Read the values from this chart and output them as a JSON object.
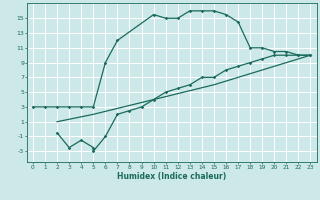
{
  "xlabel": "Humidex (Indice chaleur)",
  "ylabel": "",
  "bg_color": "#cce8e8",
  "grid_color": "#ffffff",
  "line_color": "#1a6b5a",
  "xlim": [
    -0.5,
    23.5
  ],
  "ylim": [
    -4.5,
    17
  ],
  "xticks": [
    0,
    1,
    2,
    3,
    4,
    5,
    6,
    7,
    8,
    9,
    10,
    11,
    12,
    13,
    14,
    15,
    16,
    17,
    18,
    19,
    20,
    21,
    22,
    23
  ],
  "yticks": [
    -3,
    -1,
    1,
    3,
    5,
    7,
    9,
    11,
    13,
    15
  ],
  "line1_x": [
    0,
    1,
    2,
    3,
    4,
    5,
    6,
    7,
    10,
    11,
    12,
    13,
    14,
    15,
    16,
    17,
    18,
    19,
    20,
    21,
    22,
    23
  ],
  "line1_y": [
    3,
    3,
    3,
    3,
    3,
    3,
    9,
    12,
    15.5,
    15,
    15,
    16,
    16,
    16,
    15.5,
    14.5,
    11,
    11,
    10.5,
    10.5,
    10,
    10
  ],
  "line2_x": [
    2,
    3,
    4,
    5,
    5,
    6,
    7,
    8,
    9,
    10,
    11,
    12,
    13,
    14,
    15,
    16,
    17,
    18,
    19,
    20,
    21,
    22,
    23
  ],
  "line2_y": [
    -0.5,
    -2.5,
    -1.5,
    -2.5,
    -3,
    -1,
    2,
    2.5,
    3,
    4,
    5,
    5.5,
    6,
    7,
    7,
    8,
    8.5,
    9,
    9.5,
    10,
    10,
    10,
    10
  ],
  "line3_x": [
    2,
    5,
    10,
    15,
    20,
    23
  ],
  "line3_y": [
    1,
    2,
    4,
    6,
    8.5,
    10
  ]
}
